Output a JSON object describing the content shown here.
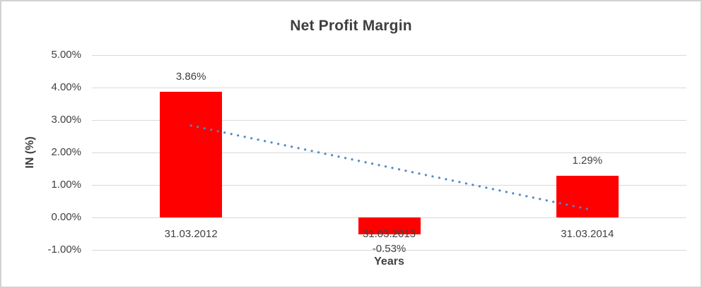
{
  "chart_data": {
    "type": "bar",
    "title": "Net Profit Margin",
    "xlabel": "Years",
    "ylabel": "IN (%)",
    "categories": [
      "31.03.2012",
      "31.03.2013",
      "31.03.2014"
    ],
    "values": [
      3.86,
      -0.53,
      1.29
    ],
    "data_labels": [
      "3.86%",
      "-0.53%",
      "1.29%"
    ],
    "ylim": [
      -1,
      5
    ],
    "yticks": {
      "values": [
        5,
        4,
        3,
        2,
        1,
        0,
        -1
      ],
      "labels": [
        "5.00%",
        "4.00%",
        "3.00%",
        "2.00%",
        "1.00%",
        "0.00%",
        "-1.00%"
      ]
    },
    "grid": "horizontal",
    "legend": "none",
    "trendline": {
      "type": "linear",
      "style": "dotted",
      "start_value": 2.83,
      "end_value": 0.26
    },
    "colors": {
      "bar": "#ff0000",
      "trendline": "#4e88c9",
      "gridline": "#d9d9d9",
      "text": "#404040",
      "border": "#d2d2d2",
      "background": "#ffffff"
    }
  }
}
